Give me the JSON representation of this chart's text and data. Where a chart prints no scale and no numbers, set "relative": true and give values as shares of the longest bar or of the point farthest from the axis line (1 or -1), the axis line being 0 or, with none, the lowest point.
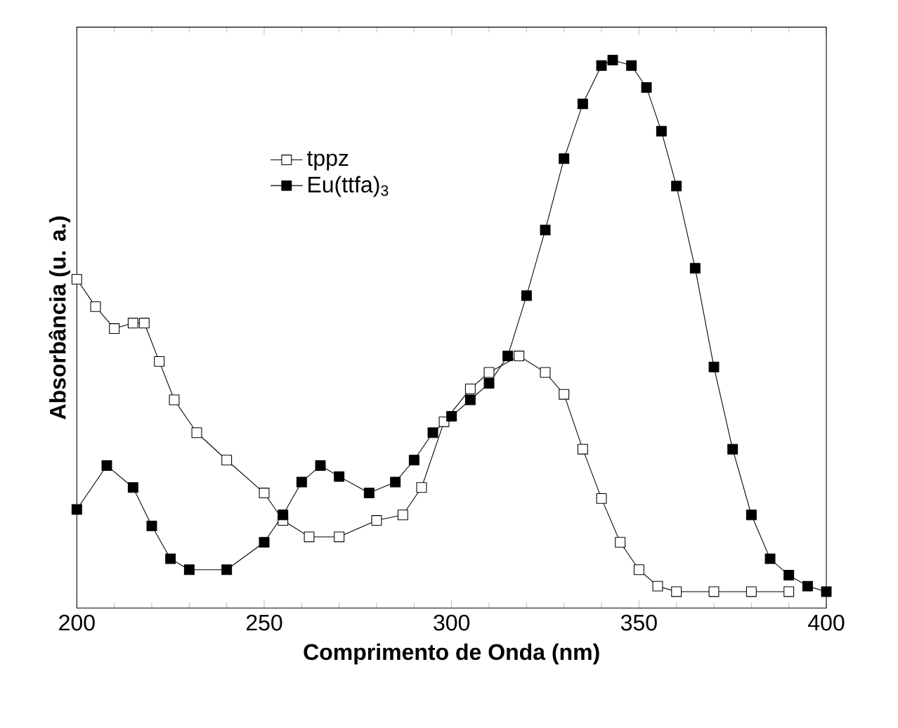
{
  "chart_data": {
    "type": "line",
    "xlabel": "Comprimento de Onda (nm)",
    "ylabel": "Absorbância (u. a.)",
    "relative": true,
    "xlim": [
      200,
      400
    ],
    "xticks": [
      200,
      250,
      300,
      350,
      400
    ],
    "marker": "square",
    "legend": "top left",
    "series": [
      {
        "name": "tppz",
        "color": "#000000",
        "x": [
          200,
          205,
          210,
          215,
          218,
          222,
          226,
          232,
          240,
          250,
          255,
          262,
          270,
          280,
          287,
          292,
          298,
          305,
          310,
          318,
          325,
          330,
          335,
          340,
          345,
          350,
          355,
          360,
          370,
          380,
          390
        ],
        "values": [
          0.6,
          0.55,
          0.51,
          0.52,
          0.52,
          0.45,
          0.38,
          0.32,
          0.27,
          0.21,
          0.16,
          0.13,
          0.13,
          0.16,
          0.17,
          0.22,
          0.34,
          0.4,
          0.43,
          0.46,
          0.43,
          0.39,
          0.29,
          0.2,
          0.12,
          0.07,
          0.04,
          0.03,
          0.03,
          0.03,
          0.03
        ]
      },
      {
        "name": "Eu(ttfa)$_{3}$",
        "color": "#000000",
        "x": [
          200,
          208,
          215,
          220,
          225,
          230,
          240,
          250,
          255,
          260,
          265,
          270,
          278,
          285,
          290,
          295,
          300,
          305,
          310,
          315,
          320,
          325,
          330,
          335,
          340,
          343,
          348,
          352,
          356,
          360,
          365,
          370,
          375,
          380,
          385,
          390,
          395,
          400
        ],
        "values": [
          0.18,
          0.26,
          0.22,
          0.15,
          0.09,
          0.07,
          0.07,
          0.12,
          0.17,
          0.23,
          0.26,
          0.24,
          0.21,
          0.23,
          0.27,
          0.32,
          0.35,
          0.38,
          0.41,
          0.46,
          0.57,
          0.69,
          0.82,
          0.92,
          0.99,
          1.0,
          0.99,
          0.95,
          0.87,
          0.77,
          0.62,
          0.44,
          0.29,
          0.17,
          0.09,
          0.06,
          0.04,
          0.03
        ]
      }
    ]
  }
}
